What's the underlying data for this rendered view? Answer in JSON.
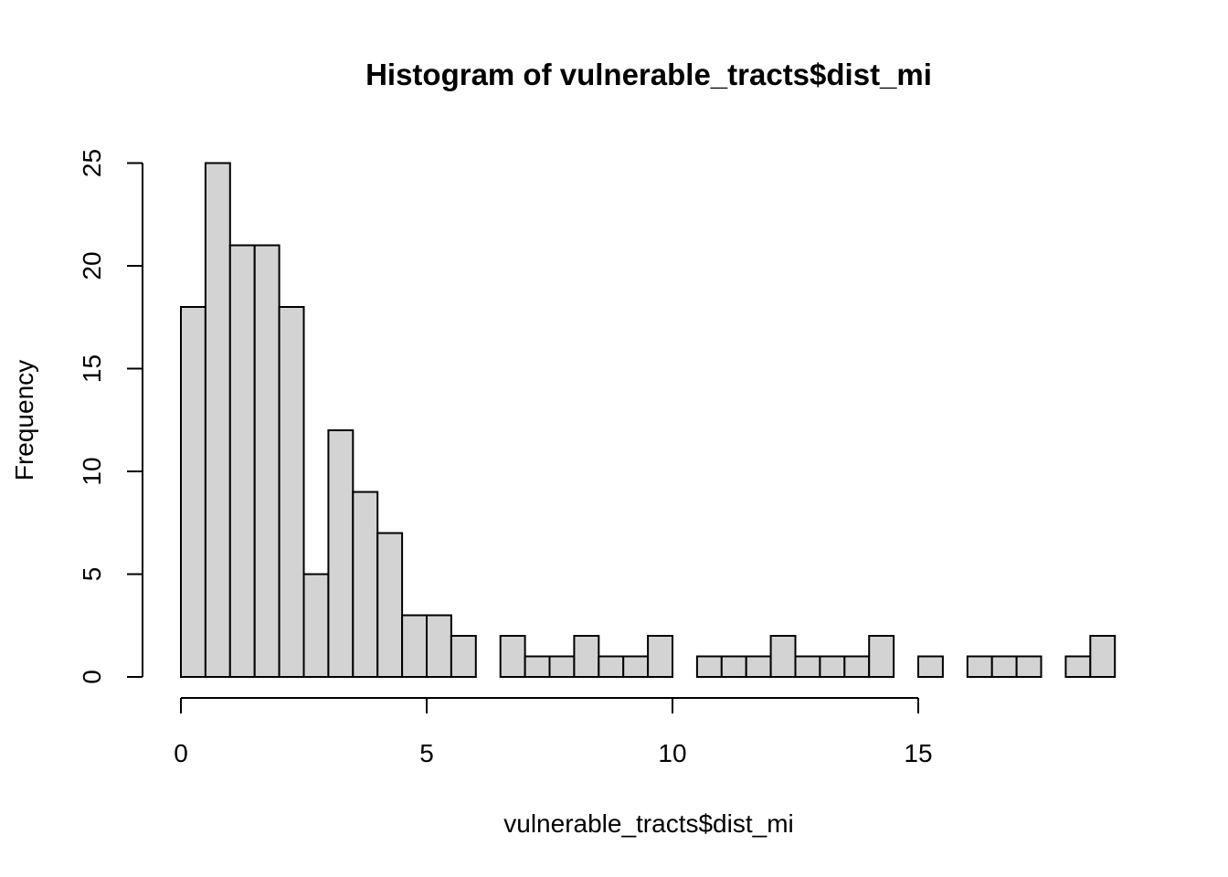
{
  "chart_data": {
    "type": "bar",
    "subtype": "histogram",
    "title": "Histogram of vulnerable_tracts$dist_mi",
    "xlabel": "vulnerable_tracts$dist_mi",
    "ylabel": "Frequency",
    "bin_width": 0.5,
    "bins": [
      {
        "x0": 0.0,
        "x1": 0.5,
        "count": 18
      },
      {
        "x0": 0.5,
        "x1": 1.0,
        "count": 25
      },
      {
        "x0": 1.0,
        "x1": 1.5,
        "count": 21
      },
      {
        "x0": 1.5,
        "x1": 2.0,
        "count": 21
      },
      {
        "x0": 2.0,
        "x1": 2.5,
        "count": 18
      },
      {
        "x0": 2.5,
        "x1": 3.0,
        "count": 5
      },
      {
        "x0": 3.0,
        "x1": 3.5,
        "count": 12
      },
      {
        "x0": 3.5,
        "x1": 4.0,
        "count": 9
      },
      {
        "x0": 4.0,
        "x1": 4.5,
        "count": 7
      },
      {
        "x0": 4.5,
        "x1": 5.0,
        "count": 3
      },
      {
        "x0": 5.0,
        "x1": 5.5,
        "count": 3
      },
      {
        "x0": 5.5,
        "x1": 6.0,
        "count": 2
      },
      {
        "x0": 6.0,
        "x1": 6.5,
        "count": 0
      },
      {
        "x0": 6.5,
        "x1": 7.0,
        "count": 2
      },
      {
        "x0": 7.0,
        "x1": 7.5,
        "count": 1
      },
      {
        "x0": 7.5,
        "x1": 8.0,
        "count": 1
      },
      {
        "x0": 8.0,
        "x1": 8.5,
        "count": 2
      },
      {
        "x0": 8.5,
        "x1": 9.0,
        "count": 1
      },
      {
        "x0": 9.0,
        "x1": 9.5,
        "count": 1
      },
      {
        "x0": 9.5,
        "x1": 10.0,
        "count": 2
      },
      {
        "x0": 10.0,
        "x1": 10.5,
        "count": 0
      },
      {
        "x0": 10.5,
        "x1": 11.0,
        "count": 1
      },
      {
        "x0": 11.0,
        "x1": 11.5,
        "count": 1
      },
      {
        "x0": 11.5,
        "x1": 12.0,
        "count": 1
      },
      {
        "x0": 12.0,
        "x1": 12.5,
        "count": 2
      },
      {
        "x0": 12.5,
        "x1": 13.0,
        "count": 1
      },
      {
        "x0": 13.0,
        "x1": 13.5,
        "count": 1
      },
      {
        "x0": 13.5,
        "x1": 14.0,
        "count": 1
      },
      {
        "x0": 14.0,
        "x1": 14.5,
        "count": 2
      },
      {
        "x0": 14.5,
        "x1": 15.0,
        "count": 0
      },
      {
        "x0": 15.0,
        "x1": 15.5,
        "count": 1
      },
      {
        "x0": 15.5,
        "x1": 16.0,
        "count": 0
      },
      {
        "x0": 16.0,
        "x1": 16.5,
        "count": 1
      },
      {
        "x0": 16.5,
        "x1": 17.0,
        "count": 1
      },
      {
        "x0": 17.0,
        "x1": 17.5,
        "count": 1
      },
      {
        "x0": 17.5,
        "x1": 18.0,
        "count": 0
      },
      {
        "x0": 18.0,
        "x1": 18.5,
        "count": 1
      },
      {
        "x0": 18.5,
        "x1": 19.0,
        "count": 2
      }
    ],
    "x_ticks": [
      0,
      5,
      10,
      15
    ],
    "y_ticks": [
      0,
      5,
      10,
      15,
      20,
      25
    ],
    "xlim": [
      0,
      19
    ],
    "ylim": [
      0,
      25
    ],
    "grid": false,
    "colors": {
      "bar_fill": "#d3d3d3",
      "bar_stroke": "#000000"
    }
  }
}
